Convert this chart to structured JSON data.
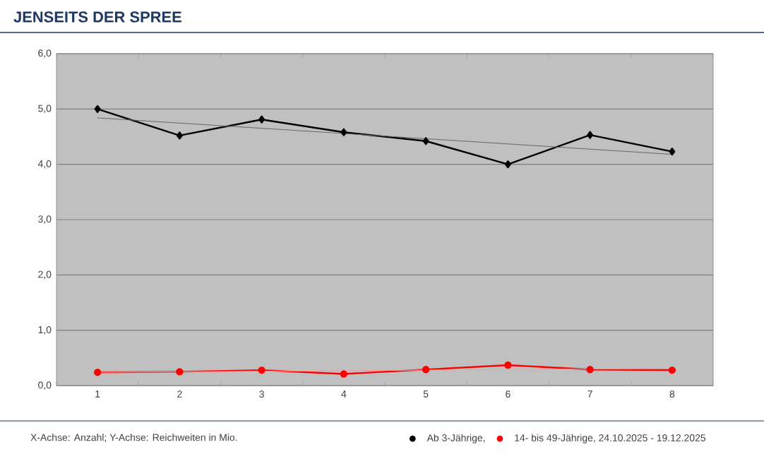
{
  "chart_data": {
    "type": "line",
    "title": "JENSEITS DER SPREE",
    "annotations": [
      "X-Achse: Anzahl; Y-Achse: Reichweiten in Mio."
    ],
    "categories": [
      "1",
      "2",
      "3",
      "4",
      "5",
      "6",
      "7",
      "8"
    ],
    "series": [
      {
        "name": "Ab 3-Jährige,",
        "color": "#000000",
        "marker": "diamond",
        "values": [
          5.0,
          4.52,
          4.81,
          4.58,
          4.42,
          4.0,
          4.53,
          4.23
        ]
      },
      {
        "name": "14- bis 49-Jährige, 24.10.2025 - 19.12.2025",
        "color": "#ff0000",
        "marker": "circle",
        "values": [
          0.24,
          0.25,
          0.28,
          0.21,
          0.29,
          0.37,
          0.29,
          0.28
        ]
      },
      {
        "type": "line",
        "color": "#666666",
        "marker": "none",
        "x": [
          "1",
          "8"
        ],
        "values": [
          4.84,
          4.18
        ]
      },
      {
        "type": "line",
        "color": "#f4a0a0",
        "marker": "none",
        "x": [
          "1",
          "8"
        ],
        "values": [
          0.24,
          0.31
        ]
      }
    ],
    "ylim": [
      0,
      6
    ],
    "yticks": [
      {
        "value": 0,
        "label": "0,0"
      },
      {
        "value": 1,
        "label": "1,0"
      },
      {
        "value": 2,
        "label": "2,0"
      },
      {
        "value": 3,
        "label": "3,0"
      },
      {
        "value": 4,
        "label": "4,0"
      },
      {
        "value": 5,
        "label": "5,0"
      },
      {
        "value": 6,
        "label": "6,0"
      }
    ],
    "grid": "y",
    "legend": "bottom"
  }
}
